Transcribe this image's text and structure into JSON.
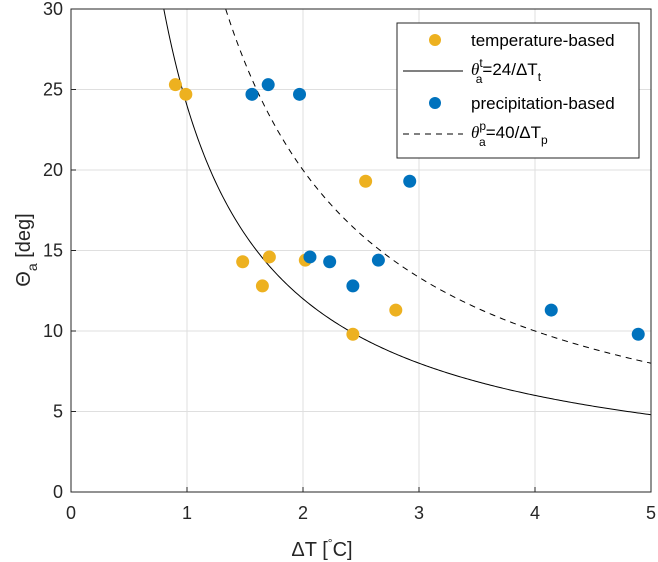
{
  "chart_data": {
    "type": "scatter",
    "title": "",
    "xlabel": "ΔT [°C]",
    "ylabel": "Θa [deg]",
    "xlim": [
      0,
      5
    ],
    "ylim": [
      0,
      30
    ],
    "xticks": [
      0,
      1,
      2,
      3,
      4,
      5
    ],
    "yticks": [
      0,
      5,
      10,
      15,
      20,
      25,
      30
    ],
    "grid": true,
    "legend_position": "top-right",
    "series": [
      {
        "name": "temperature-based",
        "kind": "scatter",
        "color": "#EDB120",
        "points": [
          {
            "x": 0.9,
            "y": 25.3
          },
          {
            "x": 0.99,
            "y": 24.7
          },
          {
            "x": 1.48,
            "y": 14.3
          },
          {
            "x": 1.71,
            "y": 14.6
          },
          {
            "x": 1.65,
            "y": 12.8
          },
          {
            "x": 2.02,
            "y": 14.4
          },
          {
            "x": 2.54,
            "y": 19.3
          },
          {
            "x": 2.43,
            "y": 9.8
          },
          {
            "x": 2.8,
            "y": 11.3
          }
        ]
      },
      {
        "name": "θa^t=24/ΔTt",
        "kind": "curve",
        "color": "#000000",
        "dash": "solid",
        "coefficient": 24,
        "legend_main": "θ",
        "legend_sup": "t",
        "legend_sub": "a",
        "legend_rest": "=24/ΔT",
        "legend_rest_sub": "t"
      },
      {
        "name": "precipitation-based",
        "kind": "scatter",
        "color": "#0072BD",
        "points": [
          {
            "x": 1.56,
            "y": 24.7
          },
          {
            "x": 1.7,
            "y": 25.3
          },
          {
            "x": 1.97,
            "y": 24.7
          },
          {
            "x": 2.06,
            "y": 14.6
          },
          {
            "x": 2.23,
            "y": 14.3
          },
          {
            "x": 2.65,
            "y": 14.4
          },
          {
            "x": 2.43,
            "y": 12.8
          },
          {
            "x": 2.92,
            "y": 19.3
          },
          {
            "x": 4.14,
            "y": 11.3
          },
          {
            "x": 4.89,
            "y": 9.8
          }
        ]
      },
      {
        "name": "θa^p=40/ΔTp",
        "kind": "curve",
        "color": "#000000",
        "dash": "dashed",
        "coefficient": 40,
        "legend_main": "θ",
        "legend_sup": "p",
        "legend_sub": "a",
        "legend_rest": "=40/ΔT",
        "legend_rest_sub": "p"
      }
    ]
  },
  "labels": {
    "xlabel_main": "ΔT [",
    "xlabel_sup": "°",
    "xlabel_tail": "C]",
    "ylabel_main": "Θ",
    "ylabel_sub": "a",
    "ylabel_tail": " [deg]"
  }
}
